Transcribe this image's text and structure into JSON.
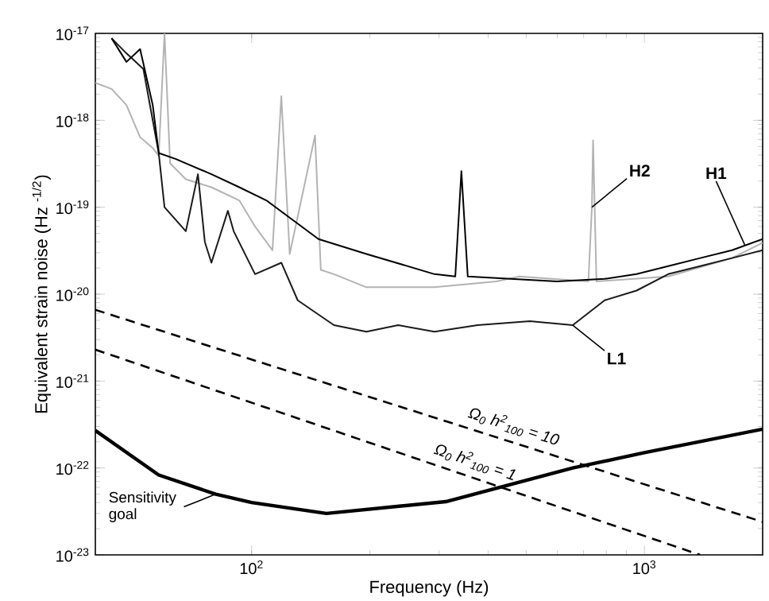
{
  "chart_data": {
    "type": "line",
    "xlabel": "Frequency (Hz)",
    "ylabel": "Equivalent strain noise (Hz $^{-1/2}$)",
    "log": "xy",
    "xlim": [
      40,
      2000
    ],
    "ylim": [
      1e-23,
      1e-17
    ],
    "xticks": [
      {
        "value": 100,
        "label": "10$^{2}$"
      },
      {
        "value": 1000,
        "label": "10$^{3}$"
      }
    ],
    "yticks": [
      {
        "value": 1e-23,
        "label": "10$^{-23}$"
      },
      {
        "value": 1e-22,
        "label": "10$^{-22}$"
      },
      {
        "value": 1e-21,
        "label": "10$^{-21}$"
      },
      {
        "value": 1e-20,
        "label": "10$^{-20}$"
      },
      {
        "value": 1e-19,
        "label": "10$^{-19}$"
      },
      {
        "value": 1e-18,
        "label": "10$^{-18}$"
      },
      {
        "value": 1e-17,
        "label": "10$^{-17}$"
      }
    ],
    "series": [
      {
        "color": "#b3b3b3",
        "line_style": "solid",
        "x": [
          40,
          44,
          48,
          52,
          56,
          58,
          60,
          62,
          68,
          79,
          93,
          102,
          113,
          119,
          125,
          145,
          150,
          162,
          196,
          292,
          420,
          480,
          720,
          735,
          740,
          755,
          1150,
          1671,
          2000
        ],
        "values": [
          2.7e-18,
          2.3e-18,
          1.5e-18,
          6.4e-19,
          4.8e-19,
          3.9e-19,
          1e-17,
          3.2e-19,
          2.1e-19,
          1.7e-19,
          1.2e-19,
          6e-20,
          3.2e-20,
          1.9e-18,
          2.9e-20,
          6.7e-19,
          1.9e-20,
          1.7e-20,
          1.2e-20,
          1.2e-20,
          1.4e-20,
          1.6e-20,
          1.4e-20,
          1e-19,
          5.9e-19,
          1.4e-20,
          1.6e-20,
          2.6e-20,
          3.9e-20
        ]
      },
      {
        "color": "#1a1a1a",
        "line_style": "solid",
        "x": [
          44,
          48,
          53,
          58,
          60,
          68,
          73,
          76,
          79,
          87,
          90,
          102,
          119,
          131,
          162,
          196,
          236,
          292,
          376,
          511,
          657,
          792,
          955,
          1150,
          1387,
          1671,
          2000
        ],
        "values": [
          8.8e-18,
          5.9e-18,
          3.9e-18,
          4.2e-19,
          1e-19,
          5.3e-20,
          2.4e-19,
          4e-20,
          2.3e-20,
          9.1e-20,
          5.3e-20,
          1.7e-20,
          2.3e-20,
          8.5e-21,
          4.4e-21,
          3.7e-21,
          4.4e-21,
          3.7e-21,
          4.4e-21,
          4.9e-21,
          4.4e-21,
          8.5e-21,
          1.1e-20,
          1.7e-20,
          2.1e-20,
          2.6e-20,
          3.2e-20
        ]
      },
      {
        "color": "#000000",
        "line_style": "solid",
        "x": [
          44,
          48,
          52,
          56,
          58,
          64,
          79,
          93,
          109,
          148,
          196,
          292,
          330,
          342,
          355,
          599,
          792,
          955,
          1150,
          1387,
          1671,
          2000
        ],
        "values": [
          8.8e-18,
          4.7e-18,
          6.6e-18,
          1.5e-18,
          4.2e-19,
          3.6e-19,
          2.4e-19,
          1.7e-19,
          1.2e-19,
          4.3e-20,
          2.9e-20,
          1.7e-20,
          1.6e-20,
          2.6e-19,
          1.6e-20,
          1.4e-20,
          1.5e-20,
          1.7e-20,
          2.1e-20,
          2.6e-20,
          3.2e-20,
          4.3e-20
        ]
      },
      {
        "name": "Ω$_{0}$ h$^{2}$$_{100}$ = 10",
        "color": "#000000",
        "line_style": "dashed",
        "x": [
          40,
          2000
        ],
        "values": [
          6.6e-21,
          2.4e-23
        ]
      },
      {
        "name": "Ω$_{0}$ h$^{2}$$_{100}$ = 1",
        "color": "#000000",
        "line_style": "dashed",
        "x": [
          40,
          1387
        ],
        "values": [
          2.3e-21,
          1e-23
        ]
      },
      {
        "color": "#000000",
        "line_style": "solid",
        "x": [
          40,
          58,
          81,
          100,
          155,
          312,
          657,
          1000,
          2000
        ],
        "values": [
          2.7e-22,
          8.3e-23,
          5e-23,
          4e-23,
          3e-23,
          4.1e-23,
          1e-22,
          1.5e-22,
          2.8e-22
        ]
      }
    ],
    "annotations": [
      {
        "text": "H2",
        "x": 735,
        "y": 1e-19
      },
      {
        "text": "H1",
        "x": 1800,
        "y": 3.7e-20
      },
      {
        "text": "L1",
        "x": 657,
        "y": 4.4e-21
      },
      {
        "text": "Sensitivity goal",
        "x": 81,
        "y": 5e-23
      }
    ]
  }
}
